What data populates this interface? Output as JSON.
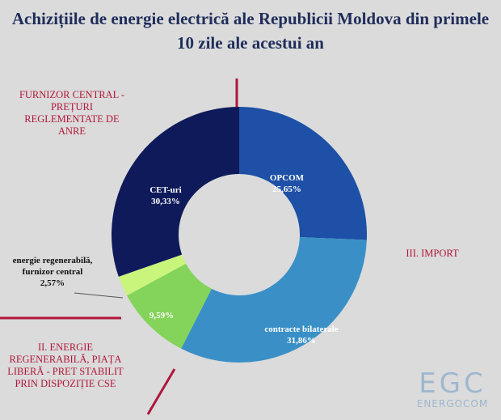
{
  "chart_data": {
    "type": "donut",
    "title": "Achizițiile de energie electrică ale Republicii Moldova din primele 10 zile ale acestui an",
    "categories": [
      "OPCOM",
      "contracte bilaterale",
      null,
      "energie regenerabilă, furnizor central",
      "CET-uri"
    ],
    "values": [
      25.65,
      31.86,
      9.59,
      2.57,
      30.33
    ],
    "value_labels": [
      "25,65%",
      "31,86%",
      "9,59%",
      "2,57%",
      "30,33%"
    ],
    "colors": [
      "#1d50a6",
      "#3a90c6",
      "#84d35a",
      "#c9f57c",
      "#0e1a5a"
    ],
    "annotations": [
      "FURNIZOR CENTRAL - PREȚURI REGLEMENTATE DE ANRE",
      "III. IMPORT",
      "II. ENERGIE REGENERABILĂ, PIAȚA LIBERĂ - PRET STABILIT PRIN DISPOZIȚIE  CSE"
    ],
    "logo": {
      "mark": "EGC",
      "name": "ENERGOCOM"
    }
  }
}
